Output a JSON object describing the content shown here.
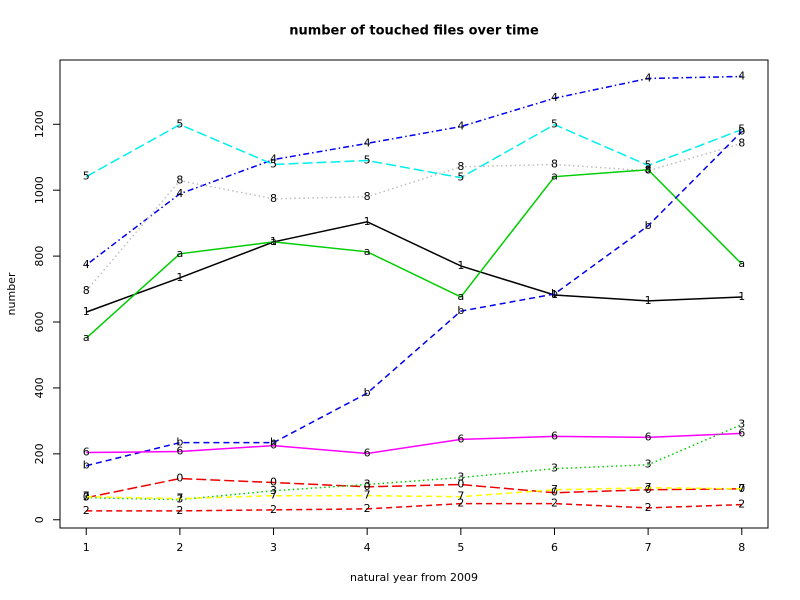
{
  "chart_data": {
    "type": "line",
    "title": "number of touched files over time",
    "x_label": "natural year from 2009",
    "y_label": "number",
    "x": [
      1,
      2,
      3,
      4,
      5,
      6,
      7,
      8
    ],
    "xlim": [
      0.72,
      8.28
    ],
    "ylim": [
      -25,
      1395
    ],
    "xticks": [
      1,
      2,
      3,
      4,
      5,
      6,
      7,
      8
    ],
    "yticks": [
      0,
      200,
      400,
      600,
      800,
      1000,
      1200
    ],
    "series": [
      {
        "name": "4",
        "color": "#0000ee",
        "dash": "dotdash",
        "values": [
          773,
          989,
          1093,
          1142,
          1193,
          1279,
          1339,
          1345
        ]
      },
      {
        "name": "5",
        "color": "#00eeee",
        "dash": "longdash",
        "values": [
          1041,
          1199,
          1078,
          1090,
          1038,
          1199,
          1075,
          1184
        ]
      },
      {
        "name": "8",
        "color": "#bebebe",
        "dash": "dotted",
        "values": [
          694,
          1029,
          974,
          980,
          1071,
          1078,
          1059,
          1142
        ]
      },
      {
        "name": "1",
        "color": "#000000",
        "dash": "solid",
        "values": [
          630,
          734,
          843,
          904,
          770,
          682,
          664,
          676
        ]
      },
      {
        "name": "a",
        "color": "#00cd00",
        "dash": "solid",
        "values": [
          551,
          807,
          843,
          813,
          676,
          1041,
          1062,
          776
        ]
      },
      {
        "name": "b",
        "color": "#0000ee",
        "dash": "dashed",
        "values": [
          164,
          234,
          234,
          384,
          633,
          685,
          892,
          1178
        ]
      },
      {
        "name": "6",
        "color": "#ff00ff",
        "dash": "solid",
        "values": [
          204,
          207,
          225,
          201,
          244,
          253,
          250,
          262
        ]
      },
      {
        "name": "0",
        "color": "#ee0000",
        "dash": "longdash",
        "values": [
          67,
          125,
          113,
          100,
          107,
          82,
          91,
          94
        ]
      },
      {
        "name": "3",
        "color": "#00cd00",
        "dash": "dotted",
        "values": [
          67,
          61,
          88,
          107,
          128,
          155,
          167,
          289
        ]
      },
      {
        "name": "7",
        "color": "#ffff00",
        "dash": "dashed",
        "values": [
          70,
          64,
          73,
          73,
          70,
          91,
          97,
          94
        ]
      },
      {
        "name": "2",
        "color": "#ee0000",
        "dash": "dashed",
        "values": [
          27,
          27,
          30,
          33,
          49,
          49,
          36,
          46
        ]
      }
    ]
  }
}
